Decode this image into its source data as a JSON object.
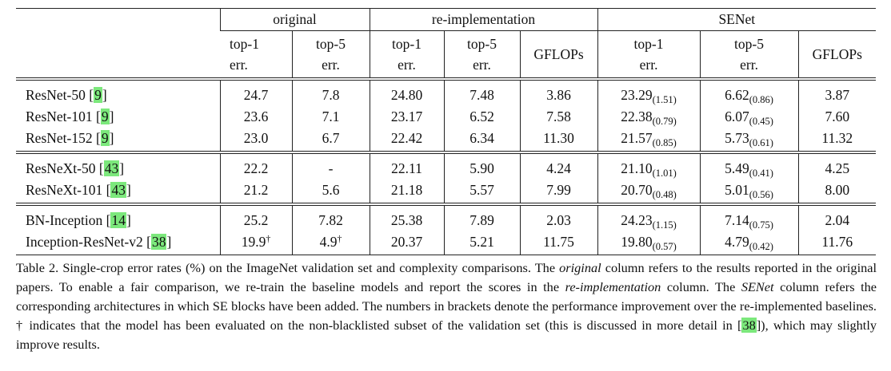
{
  "table": {
    "group_headers": [
      "original",
      "re-implementation",
      "SENet"
    ],
    "sub_headers": [
      [
        "top-1",
        "err."
      ],
      [
        "top-5",
        "err."
      ],
      [
        "top-1",
        "err."
      ],
      [
        "top-5",
        "err."
      ],
      [
        "GFLOPs"
      ],
      [
        "top-1",
        "err."
      ],
      [
        "top-5",
        "err."
      ],
      [
        "GFLOPs"
      ]
    ],
    "groups": [
      [
        {
          "label": [
            "ResNet-50 [",
            "9",
            "]"
          ],
          "cells": [
            "24.7",
            "7.8",
            "24.80",
            "7.48",
            "3.86",
            {
              "v": "23.29",
              "sub": "(1.51)"
            },
            {
              "v": "6.62",
              "sub": "(0.86)"
            },
            "3.87"
          ]
        },
        {
          "label": [
            "ResNet-101 [",
            "9",
            "]"
          ],
          "cells": [
            "23.6",
            "7.1",
            "23.17",
            "6.52",
            "7.58",
            {
              "v": "22.38",
              "sub": "(0.79)"
            },
            {
              "v": "6.07",
              "sub": "(0.45)"
            },
            "7.60"
          ]
        },
        {
          "label": [
            "ResNet-152 [",
            "9",
            "]"
          ],
          "cells": [
            "23.0",
            "6.7",
            "22.42",
            "6.34",
            "11.30",
            {
              "v": "21.57",
              "sub": "(0.85)"
            },
            {
              "v": "5.73",
              "sub": "(0.61)"
            },
            "11.32"
          ]
        }
      ],
      [
        {
          "label": [
            "ResNeXt-50 [",
            "43",
            "]"
          ],
          "cells": [
            "22.2",
            "-",
            "22.11",
            "5.90",
            "4.24",
            {
              "v": "21.10",
              "sub": "(1.01)"
            },
            {
              "v": "5.49",
              "sub": "(0.41)"
            },
            "4.25"
          ]
        },
        {
          "label": [
            "ResNeXt-101 [",
            "43",
            "]"
          ],
          "cells": [
            "21.2",
            "5.6",
            "21.18",
            "5.57",
            "7.99",
            {
              "v": "20.70",
              "sub": "(0.48)"
            },
            {
              "v": "5.01",
              "sub": "(0.56)"
            },
            "8.00"
          ]
        }
      ],
      [
        {
          "label": [
            "BN-Inception [",
            "14",
            "]"
          ],
          "cells": [
            "25.2",
            "7.82",
            "25.38",
            "7.89",
            "2.03",
            {
              "v": "24.23",
              "sub": "(1.15)"
            },
            {
              "v": "7.14",
              "sub": "(0.75)"
            },
            "2.04"
          ]
        },
        {
          "label": [
            "Inception-ResNet-v2 [",
            "38",
            "]"
          ],
          "cells": [
            {
              "v": "19.9",
              "sup": "†"
            },
            {
              "v": "4.9",
              "sup": "†"
            },
            "20.37",
            "5.21",
            "11.75",
            {
              "v": "19.80",
              "sub": "(0.57)"
            },
            {
              "v": "4.79",
              "sub": "(0.42)"
            },
            "11.76"
          ]
        }
      ]
    ]
  },
  "caption": [
    {
      "text": "Table 2. Single-crop error rates (%) on the ImageNet validation set and complexity comparisons. The ",
      "style": "plain"
    },
    {
      "text": "original",
      "style": "italic"
    },
    {
      "text": " column refers to the results reported in the original papers. To enable a fair comparison, we re-train the baseline models and report the scores in the ",
      "style": "plain"
    },
    {
      "text": "re-implementation",
      "style": "italic"
    },
    {
      "text": " column. The ",
      "style": "plain"
    },
    {
      "text": "SENet",
      "style": "italic"
    },
    {
      "text": " column refers the corresponding architectures in which SE blocks have been added. The numbers in brackets denote the performance improvement over the re-implemented baselines. † indicates that the model has been evaluated on the non-blacklisted subset of the validation set (this is discussed in more detail in [",
      "style": "plain"
    },
    {
      "text": "38",
      "style": "ref"
    },
    {
      "text": "]), which may slightly improve results.",
      "style": "plain"
    }
  ]
}
